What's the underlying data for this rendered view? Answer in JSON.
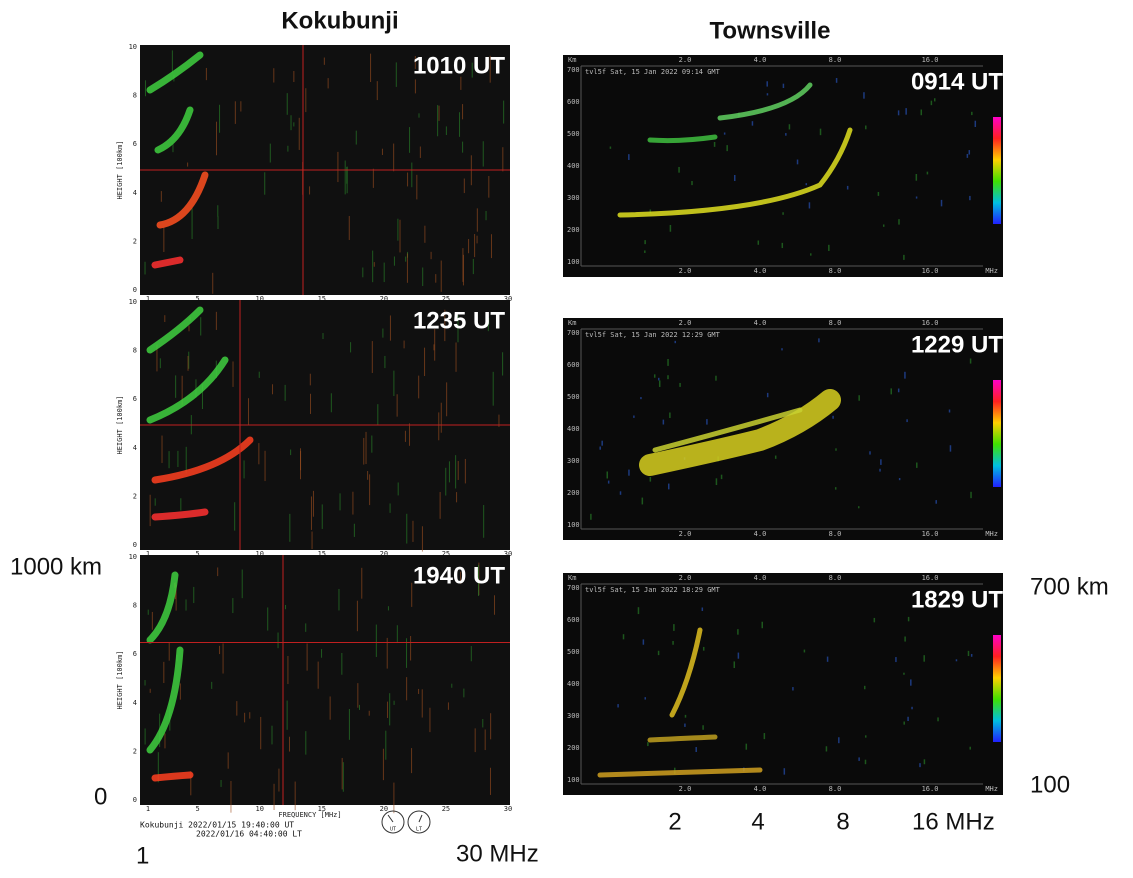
{
  "titles": {
    "left": "Kokubunji",
    "right": "Townsville"
  },
  "kokubunji": {
    "panels": [
      {
        "time": "1010 UT"
      },
      {
        "time": "1235 UT"
      },
      {
        "time": "1940 UT"
      }
    ],
    "y_label": "HEIGHT [100km]",
    "y_ticks": [
      0,
      2,
      4,
      6,
      8,
      10
    ],
    "x_ticks": [
      1,
      5,
      10,
      15,
      20,
      25,
      30
    ],
    "x_label": "FREQUENCY [MHz]",
    "footer": [
      "Kokubunji  2022/01/15 19:40:00 UT",
      "2022/01/16 04:40:00 LT"
    ],
    "dials": [
      "UT",
      "LT"
    ]
  },
  "townsville": {
    "panels": [
      {
        "time": "0914 UT",
        "header": "tvl5f   Sat, 15 Jan 2022 09:14 GMT"
      },
      {
        "time": "1229 UT",
        "header": "tvl5f   Sat, 15 Jan 2022 12:29 GMT"
      },
      {
        "time": "1829 UT",
        "header": "tvl5f   Sat, 15 Jan 2022 18:29 GMT"
      }
    ],
    "km": "Km",
    "mhz": "MHz",
    "y_ticks": [
      100,
      200,
      300,
      400,
      500,
      600,
      700
    ],
    "x_ticks": [
      "2.0",
      "4.0",
      "8.0",
      "16.0"
    ]
  },
  "annotations": {
    "left_top": "1000 km",
    "left_bottom": "0",
    "left_x_min": "1",
    "left_x_max": "30 MHz",
    "right_top": "700 km",
    "right_bottom": "100",
    "right_x": [
      "2",
      "4",
      "8",
      "16 MHz"
    ]
  }
}
